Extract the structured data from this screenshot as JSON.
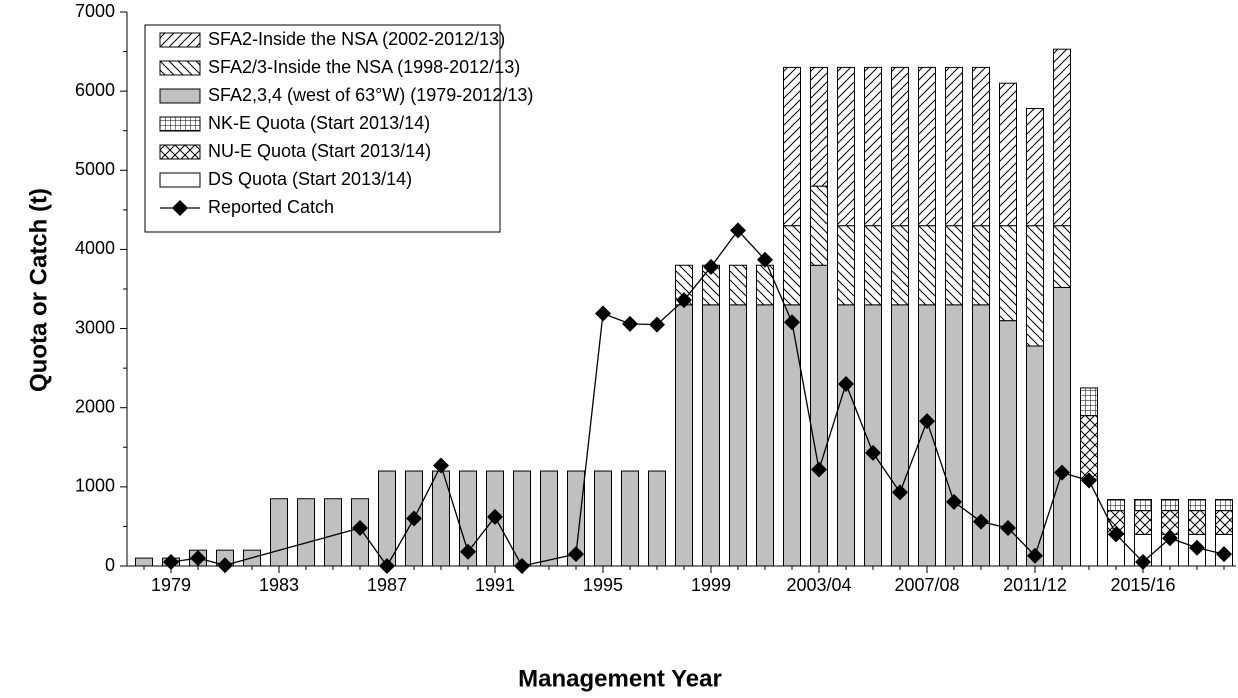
{
  "chart_data": {
    "type": "bar",
    "x_label": "Management Year",
    "y_label": "Quota or Catch (t)",
    "categories": [
      null,
      "1979",
      null,
      null,
      null,
      "1983",
      null,
      null,
      null,
      "1987",
      null,
      null,
      null,
      "1991",
      null,
      null,
      null,
      "1995",
      null,
      null,
      null,
      "1999",
      null,
      null,
      null,
      "2003/04",
      null,
      null,
      null,
      "2007/08",
      null,
      null,
      null,
      "2011/12",
      null,
      null,
      null,
      "2015/16",
      null,
      null,
      null
    ],
    "series": [
      {
        "name": "SFA2-Inside the NSA (2002-2012/13)",
        "color": "#ffffff",
        "pattern": "fwd-hatch",
        "values": [
          null,
          null,
          null,
          null,
          null,
          null,
          null,
          null,
          null,
          null,
          null,
          null,
          null,
          null,
          null,
          null,
          null,
          null,
          null,
          null,
          null,
          null,
          null,
          null,
          2000,
          1500,
          2000,
          2000,
          2000,
          2000,
          2000,
          2000,
          1800,
          1480,
          2230,
          null,
          null,
          null,
          null,
          null,
          null
        ]
      },
      {
        "name": "SFA2/3-Inside the NSA (1998-2012/13)",
        "color": "#ffffff",
        "pattern": "back-hatch",
        "values": [
          null,
          null,
          null,
          null,
          null,
          null,
          null,
          null,
          null,
          null,
          null,
          null,
          null,
          null,
          null,
          null,
          null,
          null,
          null,
          null,
          500,
          500,
          500,
          500,
          1000,
          1000,
          1000,
          1000,
          1000,
          1000,
          1000,
          1000,
          1200,
          1520,
          780,
          null,
          null,
          null,
          null,
          null,
          null
        ]
      },
      {
        "name": "SFA2,3,4 (west of 63°W) (1979-2012/13)",
        "color": "#c0c0c0",
        "pattern": "solid",
        "values": [
          100,
          100,
          200,
          200,
          200,
          850,
          850,
          850,
          850,
          1200,
          1200,
          1200,
          1200,
          1200,
          1200,
          1200,
          1200,
          1200,
          1200,
          1200,
          3300,
          3300,
          3300,
          3300,
          3300,
          3800,
          3300,
          3300,
          3300,
          3300,
          3300,
          3300,
          3100,
          2780,
          3520,
          null,
          null,
          null,
          null,
          null,
          null
        ]
      },
      {
        "name": "NK-E Quota (Start 2013/14)",
        "color": "#ffffff",
        "pattern": "grid",
        "values": [
          null,
          null,
          null,
          null,
          null,
          null,
          null,
          null,
          null,
          null,
          null,
          null,
          null,
          null,
          null,
          null,
          null,
          null,
          null,
          null,
          null,
          null,
          null,
          null,
          null,
          null,
          null,
          null,
          null,
          null,
          null,
          null,
          null,
          null,
          null,
          350,
          140,
          140,
          140,
          140,
          140
        ]
      },
      {
        "name": "NU-E Quota (Start 2013/14)",
        "color": "#ffffff",
        "pattern": "cross",
        "values": [
          null,
          null,
          null,
          null,
          null,
          null,
          null,
          null,
          null,
          null,
          null,
          null,
          null,
          null,
          null,
          null,
          null,
          null,
          null,
          null,
          null,
          null,
          null,
          null,
          null,
          null,
          null,
          null,
          null,
          null,
          null,
          null,
          null,
          null,
          null,
          800,
          300,
          300,
          300,
          300,
          300
        ]
      },
      {
        "name": "DS Quota (Start 2013/14)",
        "color": "#ffffff",
        "pattern": "solid",
        "values": [
          null,
          null,
          null,
          null,
          null,
          null,
          null,
          null,
          null,
          null,
          null,
          null,
          null,
          null,
          null,
          null,
          null,
          null,
          null,
          null,
          null,
          null,
          null,
          null,
          null,
          null,
          null,
          null,
          null,
          null,
          null,
          null,
          null,
          null,
          null,
          1100,
          400,
          400,
          400,
          400,
          400
        ]
      },
      {
        "name": "Reported Catch",
        "type": "line",
        "color": "#000000",
        "values": [
          null,
          50,
          100,
          10,
          null,
          null,
          null,
          null,
          480,
          0,
          600,
          1270,
          180,
          620,
          0,
          null,
          150,
          3190,
          3060,
          3050,
          3360,
          3780,
          4240,
          3870,
          3080,
          1220,
          2300,
          1430,
          930,
          1830,
          810,
          560,
          480,
          130,
          1180,
          1080,
          400,
          50,
          350,
          230,
          150
        ]
      }
    ],
    "ylim": [
      0,
      7000
    ],
    "yticks": [
      0,
      1000,
      2000,
      3000,
      4000,
      5000,
      6000,
      7000
    ],
    "grid": false,
    "legend": "upper-left"
  }
}
